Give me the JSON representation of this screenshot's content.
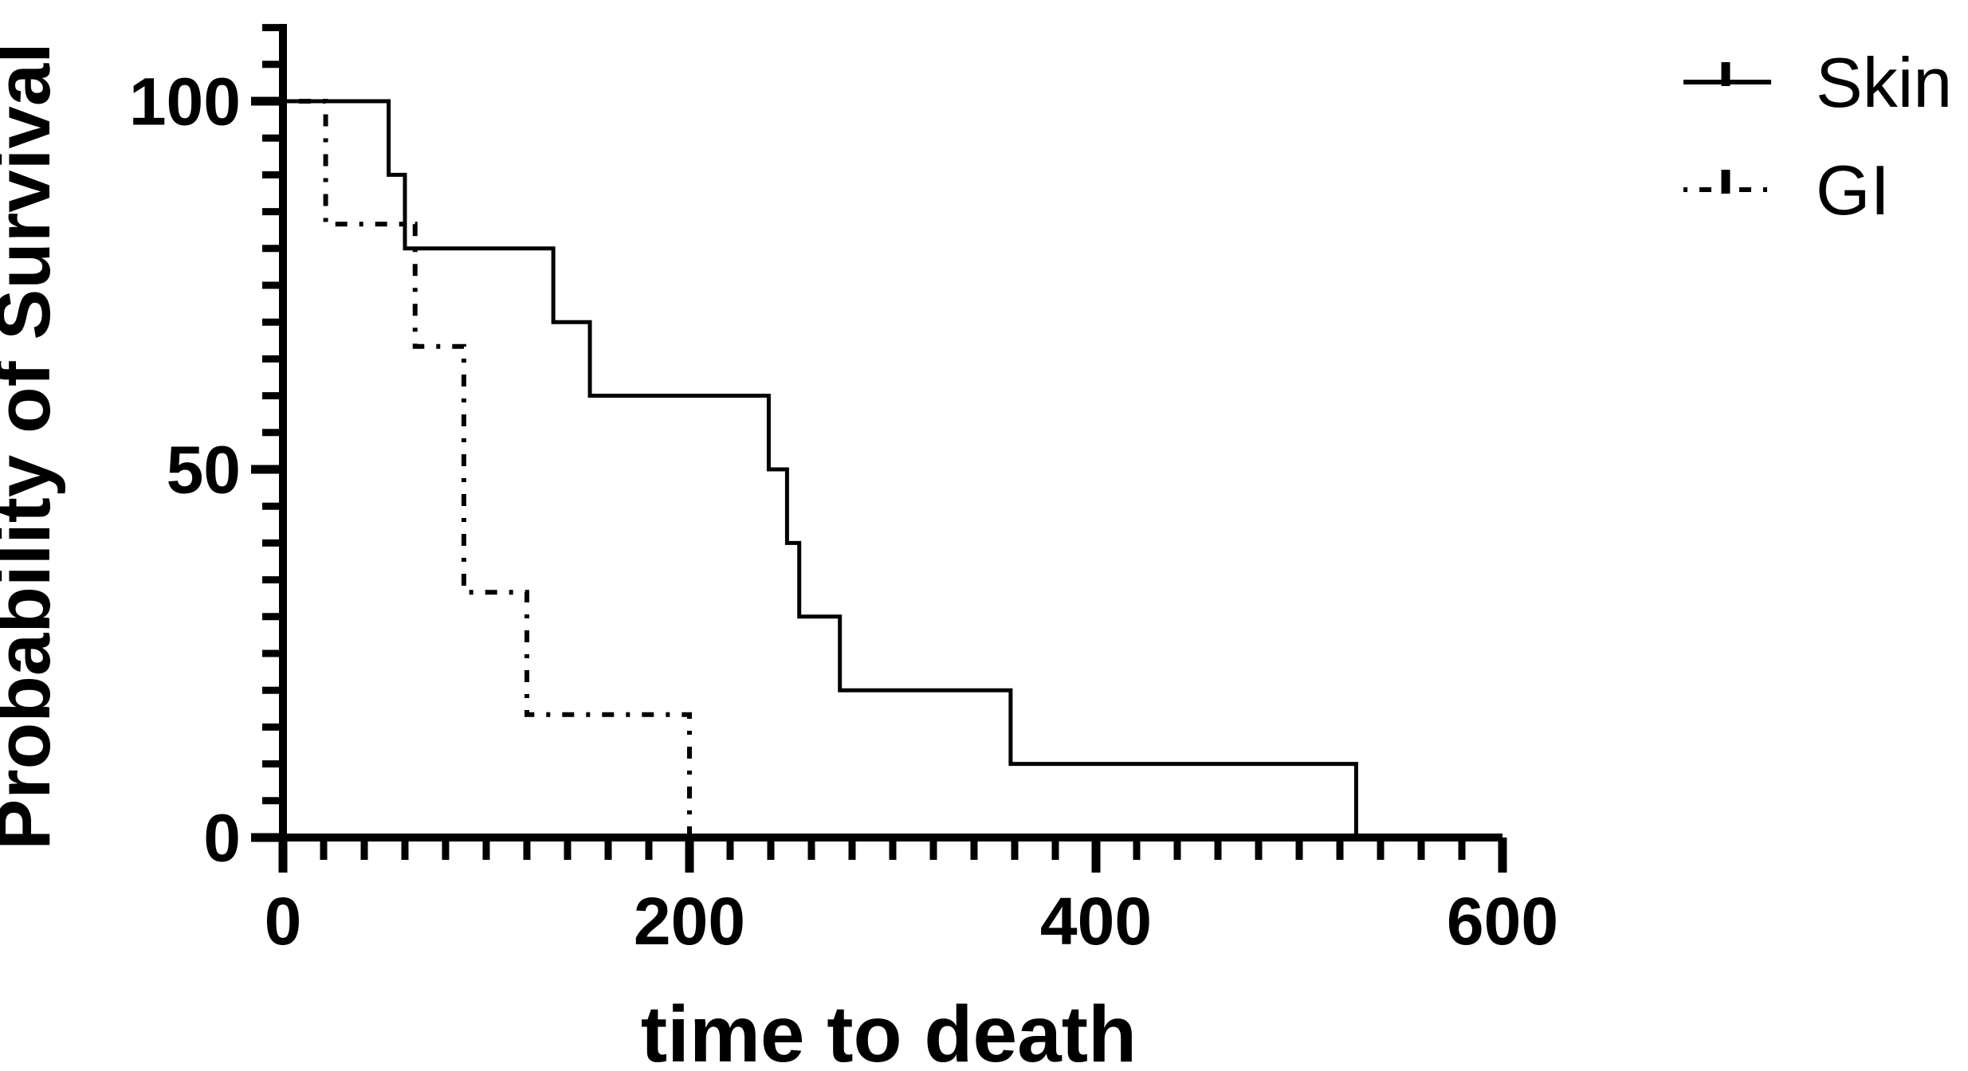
{
  "figure": {
    "background_color": "#ffffff",
    "ink_color": "#000000"
  },
  "chart_data": {
    "type": "line",
    "subtype": "kaplan-meier-step-survival",
    "title": "",
    "xlabel": "time to death",
    "ylabel": "Probability of Survival",
    "xlim": [
      0,
      600
    ],
    "ylim": [
      0,
      100
    ],
    "x_major_ticks": [
      0,
      200,
      400,
      600
    ],
    "x_minor_tick_step": 20,
    "y_major_ticks": [
      0,
      50,
      100
    ],
    "y_minor_tick_step": 5,
    "grid": false,
    "legend_position": "top-right",
    "series": [
      {
        "name": "Skin",
        "line_style": "solid",
        "color": "#000000",
        "points": [
          [
            0,
            100
          ],
          [
            52,
            100
          ],
          [
            52,
            90
          ],
          [
            60,
            90
          ],
          [
            60,
            80
          ],
          [
            133,
            80
          ],
          [
            133,
            70
          ],
          [
            151,
            70
          ],
          [
            151,
            60
          ],
          [
            239,
            60
          ],
          [
            239,
            50
          ],
          [
            248,
            50
          ],
          [
            248,
            40
          ],
          [
            254,
            40
          ],
          [
            254,
            30
          ],
          [
            274,
            30
          ],
          [
            274,
            20
          ],
          [
            358,
            20
          ],
          [
            358,
            10
          ],
          [
            528,
            10
          ],
          [
            528,
            0
          ]
        ]
      },
      {
        "name": "GI",
        "line_style": "dash-dot",
        "color": "#000000",
        "points": [
          [
            0,
            100
          ],
          [
            21,
            100
          ],
          [
            21,
            83.3
          ],
          [
            65,
            83.3
          ],
          [
            65,
            66.7
          ],
          [
            89,
            66.7
          ],
          [
            89,
            33.3
          ],
          [
            120,
            33.3
          ],
          [
            120,
            16.7
          ],
          [
            200,
            16.7
          ],
          [
            200,
            0
          ]
        ]
      }
    ]
  },
  "legend": {
    "items": [
      {
        "label": "Skin",
        "marker": "solid-line-with-censor-tick"
      },
      {
        "label": "GI",
        "marker": "dash-dot-line-with-censor-tick"
      }
    ]
  }
}
